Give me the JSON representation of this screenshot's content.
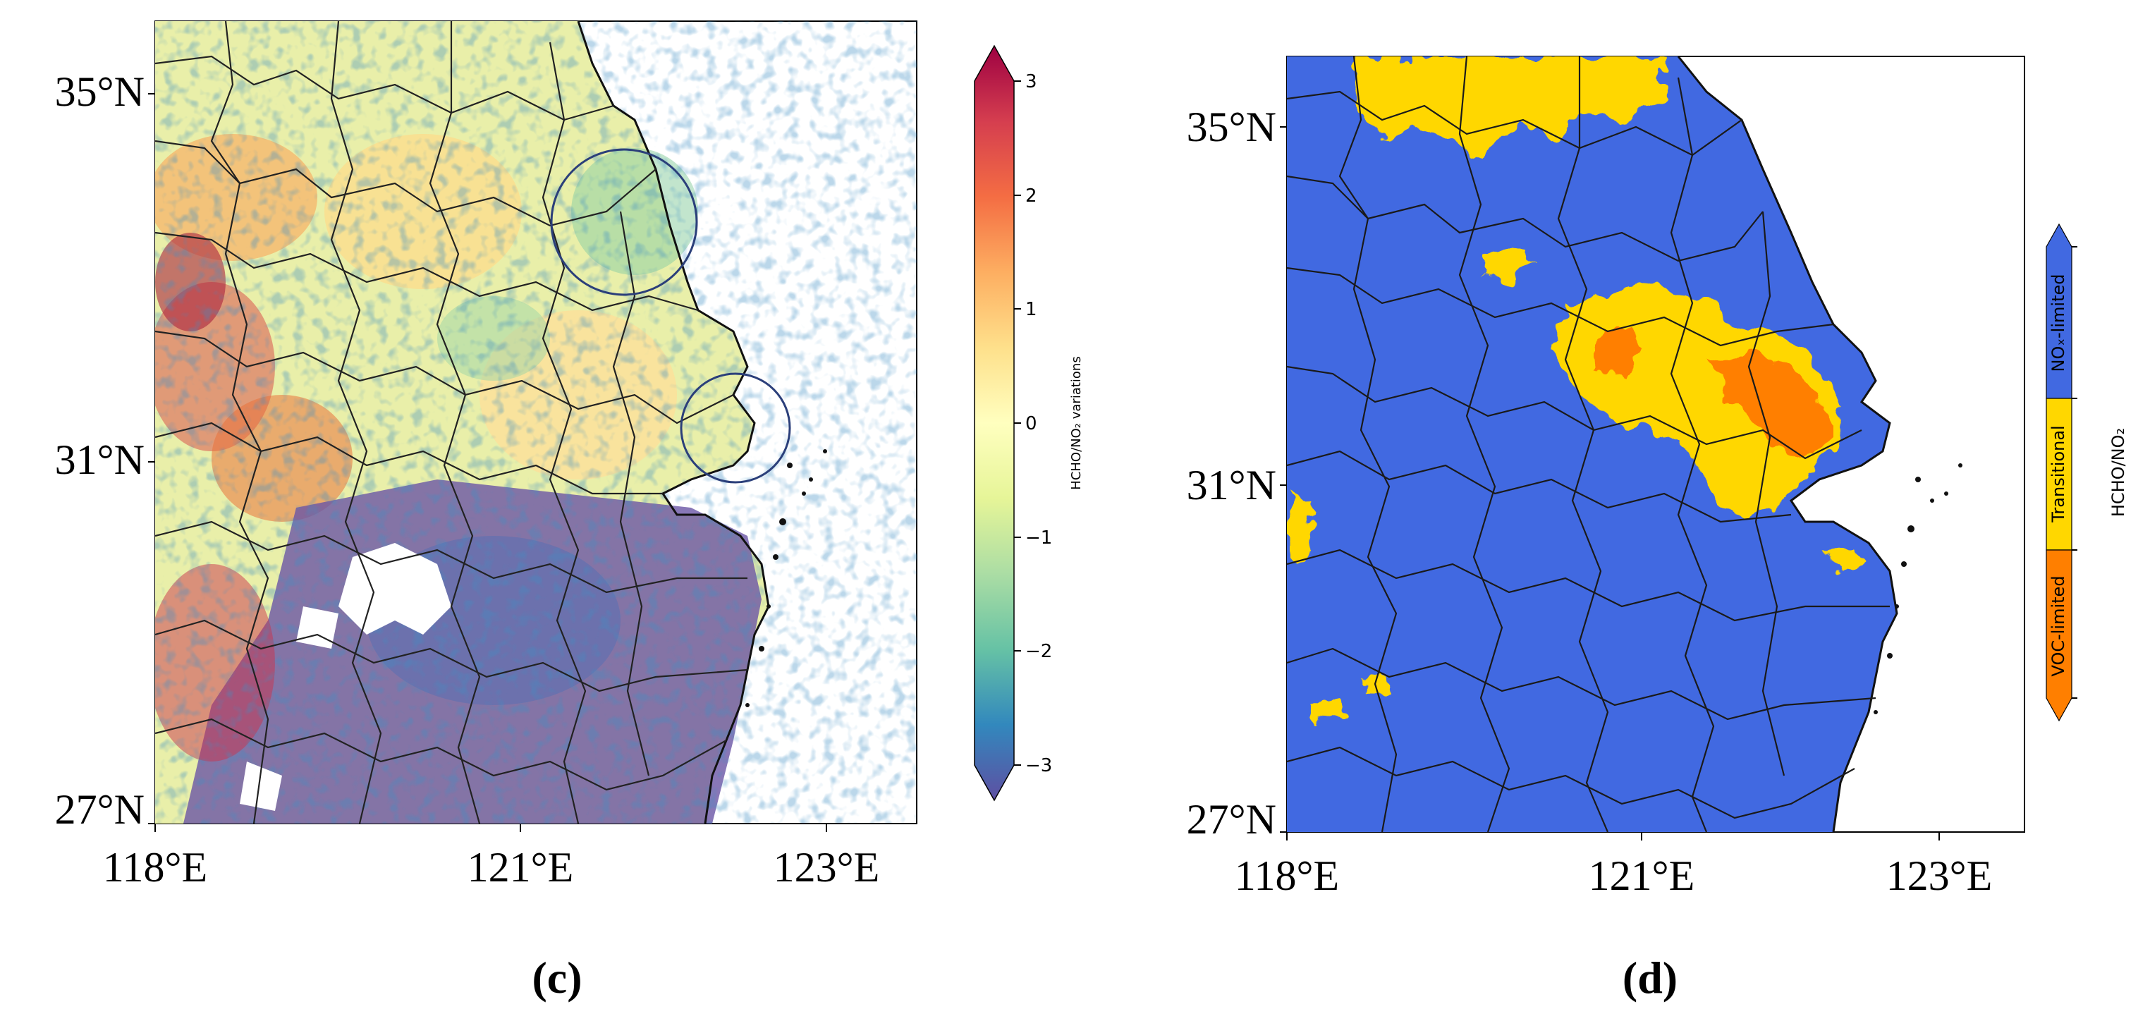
{
  "panel_c": {
    "label": "(c)",
    "lat_ticks": [
      "35°N",
      "31°N",
      "27°N"
    ],
    "lon_ticks": [
      "118°E",
      "121°E",
      "123°E"
    ],
    "colorbar": {
      "label": "HCHO/NO₂ variations",
      "ticks": [
        "3",
        "2",
        "1",
        "0",
        "−1",
        "−2",
        "−3"
      ],
      "colors": [
        "#5e4fa2",
        "#3288bd",
        "#66c2a5",
        "#abdda4",
        "#e6f598",
        "#ffffbf",
        "#fee08b",
        "#fdae61",
        "#f46d43",
        "#d53e4f",
        "#9e0142"
      ]
    },
    "highlight_circles": 2
  },
  "panel_d": {
    "label": "(d)",
    "lat_ticks": [
      "35°N",
      "31°N",
      "27°N"
    ],
    "lon_ticks": [
      "118°E",
      "121°E",
      "123°E"
    ],
    "colorbar": {
      "label": "HCHO/NO₂",
      "categories": [
        "VOC-limited",
        "Transitional",
        "NOₓ-limited"
      ],
      "colors": {
        "voc": "#ff7f00",
        "transitional": "#ffd700",
        "nox": "#4169e1"
      }
    }
  },
  "colors": {
    "sea": "#ffffff",
    "border": "#1a1a1a",
    "circle": "#2b3f7a"
  }
}
